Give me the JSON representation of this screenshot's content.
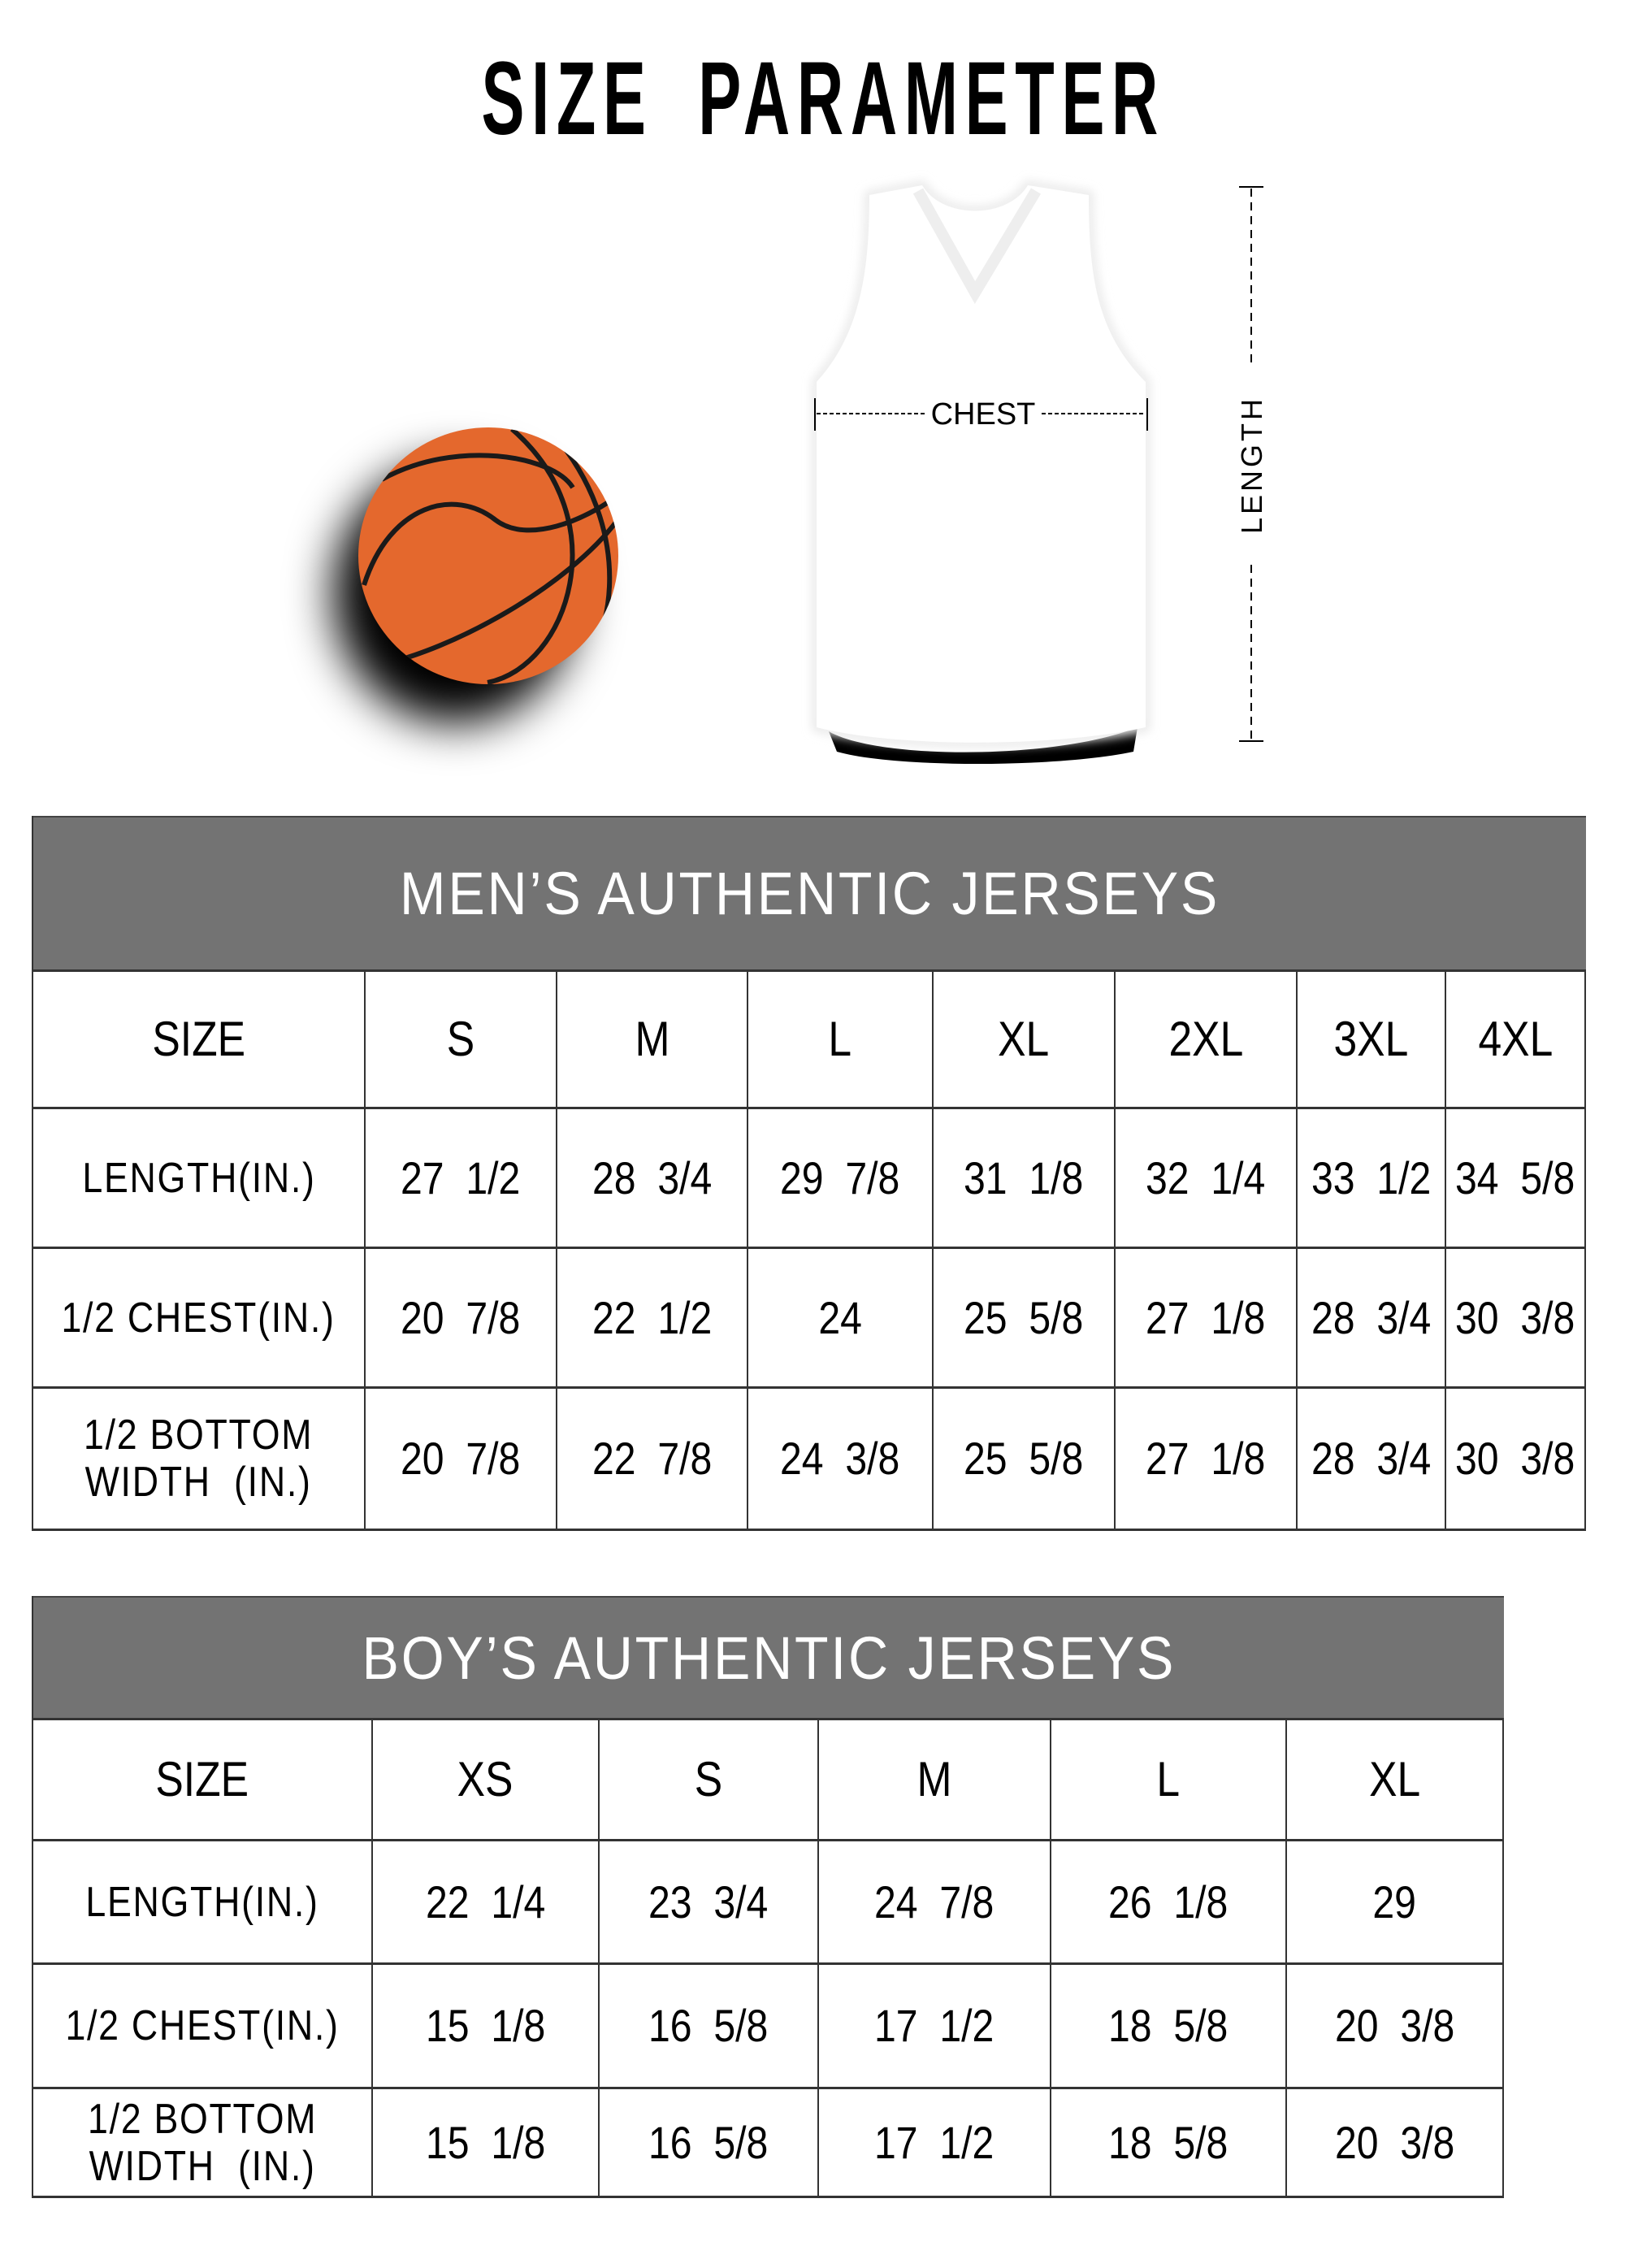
{
  "title": "SIZE PARAMETER",
  "illustration": {
    "chest_label": "CHEST",
    "length_label": "LENGTH",
    "ball_icon": "basketball-icon",
    "jersey_icon": "jersey-icon",
    "colors": {
      "ball": "#E4682D",
      "band": "#737373"
    }
  },
  "mens": {
    "title": "MEN’S AUTHENTIC JERSEYS",
    "header": [
      "SIZE",
      "S",
      "M",
      "L",
      "XL",
      "2XL",
      "3XL",
      "4XL"
    ],
    "rows": [
      [
        "LENGTH(IN.)",
        "27  1/2",
        "28  3/4",
        "29  7/8",
        "31  1/8",
        "32  1/4",
        "33  1/2",
        "34  5/8"
      ],
      [
        "1/2 CHEST(IN.)",
        "20  7/8",
        "22  1/2",
        "24",
        "25  5/8",
        "27  1/8",
        "28  3/4",
        "30  3/8"
      ],
      [
        "1/2 BOTTOM\nWIDTH  (IN.)",
        "20  7/8",
        "22  7/8",
        "24  3/8",
        "25  5/8",
        "27  1/8",
        "28  3/4",
        "30  3/8"
      ]
    ]
  },
  "boys": {
    "title": "BOY’S AUTHENTIC JERSEYS",
    "header": [
      "SIZE",
      "XS",
      "S",
      "M",
      "L",
      "XL"
    ],
    "rows": [
      [
        "LENGTH(IN.)",
        "22  1/4",
        "23  3/4",
        "24  7/8",
        "26  1/8",
        "29"
      ],
      [
        "1/2 CHEST(IN.)",
        "15  1/8",
        "16  5/8",
        "17  1/2",
        "18  5/8",
        "20  3/8"
      ],
      [
        "1/2 BOTTOM\nWIDTH  (IN.)",
        "15  1/8",
        "16  5/8",
        "17  1/2",
        "18  5/8",
        "20  3/8"
      ]
    ]
  }
}
